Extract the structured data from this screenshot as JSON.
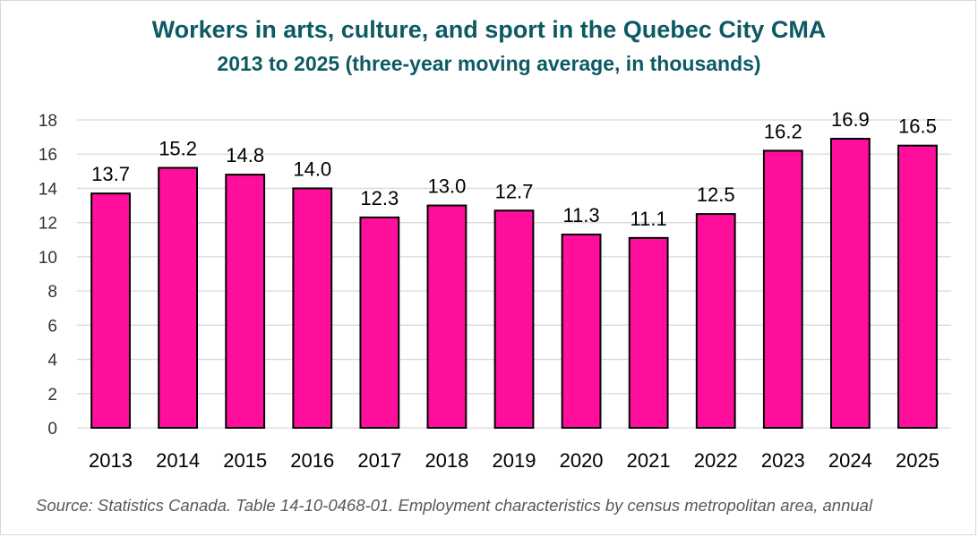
{
  "title": "Workers in arts, culture, and sport in the Quebec City CMA",
  "subtitle": "2013 to 2025 (three-year moving average, in thousands)",
  "source": "Source: Statistics Canada. Table 14-10-0468-01. Employment characteristics by census metropolitan area, annual",
  "colors": {
    "bar_fill": "#ff0f9c",
    "bar_stroke": "#000000",
    "title": "#0d5a63",
    "grid": "#d9d9d9",
    "text": "#000000"
  },
  "chart_data": {
    "type": "bar",
    "categories": [
      "2013",
      "2014",
      "2015",
      "2016",
      "2017",
      "2018",
      "2019",
      "2020",
      "2021",
      "2022",
      "2023",
      "2024",
      "2025"
    ],
    "values": [
      13.7,
      15.2,
      14.8,
      14.0,
      12.3,
      13.0,
      12.7,
      11.3,
      11.1,
      12.5,
      16.2,
      16.9,
      16.5
    ],
    "data_labels": [
      "13.7",
      "15.2",
      "14.8",
      "14.0",
      "12.3",
      "13.0",
      "12.7",
      "11.3",
      "11.1",
      "12.5",
      "16.2",
      "16.9",
      "16.5"
    ],
    "y_ticks": [
      "0",
      "2",
      "4",
      "6",
      "8",
      "10",
      "12",
      "14",
      "16",
      "18"
    ],
    "ylim": [
      0,
      18
    ],
    "grid": true,
    "legend": "none"
  }
}
